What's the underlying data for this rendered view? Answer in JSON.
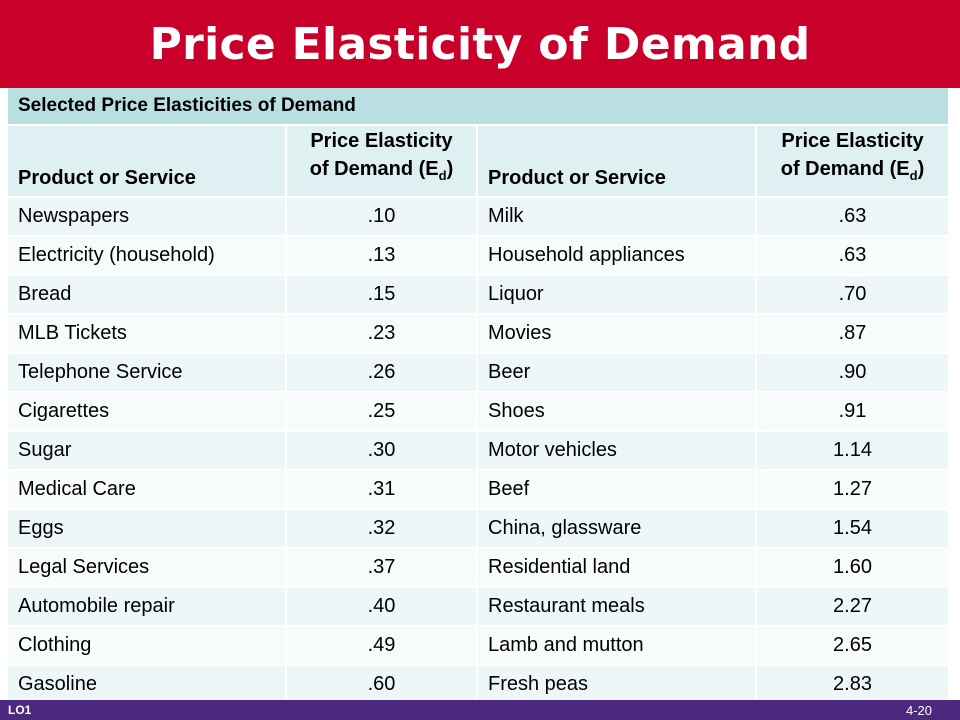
{
  "slide": {
    "title": "Price Elasticity of Demand"
  },
  "table": {
    "caption": "Selected Price Elasticities of Demand",
    "headers": {
      "product": "Product or Service",
      "elasticity_line1": "Price Elasticity",
      "elasticity_line2": "of Demand (E",
      "elasticity_sub": "d",
      "elasticity_close": ")"
    },
    "rows": [
      {
        "p1": "Newspapers",
        "e1": ".10",
        "p2": "Milk",
        "e2": ".63"
      },
      {
        "p1": "Electricity (household)",
        "e1": ".13",
        "p2": "Household appliances",
        "e2": ".63"
      },
      {
        "p1": "Bread",
        "e1": ".15",
        "p2": "Liquor",
        "e2": ".70"
      },
      {
        "p1": "MLB Tickets",
        "e1": ".23",
        "p2": "Movies",
        "e2": ".87"
      },
      {
        "p1": "Telephone Service",
        "e1": ".26",
        "p2": "Beer",
        "e2": ".90"
      },
      {
        "p1": "Cigarettes",
        "e1": ".25",
        "p2": "Shoes",
        "e2": ".91"
      },
      {
        "p1": "Sugar",
        "e1": ".30",
        "p2": "Motor vehicles",
        "e2": "1.14"
      },
      {
        "p1": "Medical Care",
        "e1": ".31",
        "p2": "Beef",
        "e2": "1.27"
      },
      {
        "p1": "Eggs",
        "e1": ".32",
        "p2": "China, glassware",
        "e2": "1.54"
      },
      {
        "p1": "Legal Services",
        "e1": ".37",
        "p2": "Residential land",
        "e2": "1.60"
      },
      {
        "p1": "Automobile repair",
        "e1": ".40",
        "p2": "Restaurant meals",
        "e2": "2.27"
      },
      {
        "p1": "Clothing",
        "e1": ".49",
        "p2": "Lamb and mutton",
        "e2": "2.65"
      },
      {
        "p1": "Gasoline",
        "e1": ".60",
        "p2": "Fresh peas",
        "e2": "2.83"
      }
    ]
  },
  "footer": {
    "lo": "LO1",
    "page": "4-20"
  },
  "colors": {
    "title_bar": "#c8002a",
    "caption_bg": "#b9dfe3",
    "footer_bg": "#4b2a7d"
  }
}
